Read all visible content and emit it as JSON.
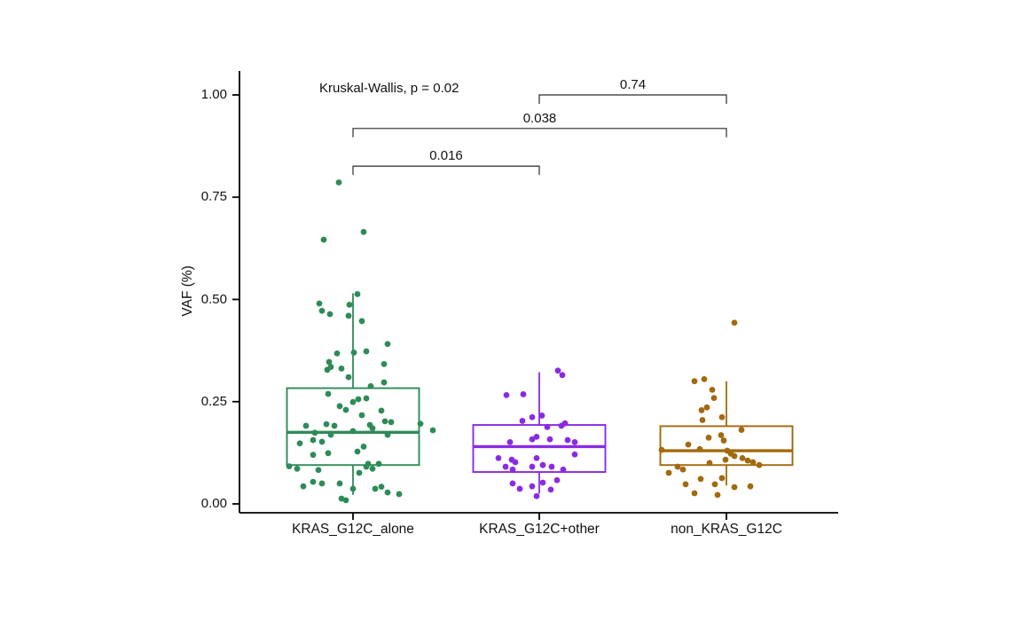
{
  "chart_data": {
    "type": "boxplot-jitter",
    "title": "",
    "xlabel": "",
    "ylabel": "VAF (%)",
    "ylim": [
      0,
      1.05
    ],
    "ytick_values": [
      0,
      0.25,
      0.5,
      0.75,
      1.0
    ],
    "ytick_labels": [
      "0.00",
      "0.25",
      "0.50",
      "0.75",
      "1.00"
    ],
    "grid": false,
    "legend": "none",
    "annotations": {
      "kruskal_label": "Kruskal-Wallis, p = 0.02",
      "comparisons": [
        {
          "from_index": 0,
          "to_index": 1,
          "p_label": "0.016",
          "y": 0.826
        },
        {
          "from_index": 0,
          "to_index": 2,
          "p_label": "0.038",
          "y": 0.918
        },
        {
          "from_index": 1,
          "to_index": 2,
          "p_label": "0.74",
          "y": 1.0
        }
      ]
    },
    "groups": [
      {
        "label": "KRAS_G12C_alone",
        "color": "#2E8B57",
        "box": {
          "q1": 0.095,
          "median": 0.175,
          "q3": 0.283,
          "whisker_low": 0.022,
          "whisker_high": 0.515
        },
        "points": [
          [
            -16,
            0.786
          ],
          [
            12,
            0.665
          ],
          [
            -33,
            0.646
          ],
          [
            5,
            0.513
          ],
          [
            -38,
            0.49
          ],
          [
            -4,
            0.487
          ],
          [
            -35,
            0.472
          ],
          [
            -26,
            0.464
          ],
          [
            -5,
            0.46
          ],
          [
            10,
            0.447
          ],
          [
            39,
            0.391
          ],
          [
            -18,
            0.368
          ],
          [
            1,
            0.37
          ],
          [
            15,
            0.373
          ],
          [
            -27,
            0.347
          ],
          [
            -25,
            0.335
          ],
          [
            -29,
            0.328
          ],
          [
            -13,
            0.331
          ],
          [
            35,
            0.342
          ],
          [
            -5,
            0.31
          ],
          [
            35,
            0.297
          ],
          [
            20,
            0.288
          ],
          [
            -28,
            0.269
          ],
          [
            6,
            0.256
          ],
          [
            15,
            0.258
          ],
          [
            0,
            0.249
          ],
          [
            -15,
            0.239
          ],
          [
            -8,
            0.23
          ],
          [
            32,
            0.228
          ],
          [
            10,
            0.217
          ],
          [
            36,
            0.202
          ],
          [
            43,
            0.2
          ],
          [
            -30,
            0.195
          ],
          [
            -21,
            0.191
          ],
          [
            19,
            0.193
          ],
          [
            22,
            0.185
          ],
          [
            90,
            0.18
          ],
          [
            76,
            0.196
          ],
          [
            0,
            0.178
          ],
          [
            39,
            0.169
          ],
          [
            -25,
            0.169
          ],
          [
            -43,
            0.174
          ],
          [
            -53,
            0.191
          ],
          [
            -45,
            0.156
          ],
          [
            -35,
            0.152
          ],
          [
            -60,
            0.148
          ],
          [
            12,
            0.14
          ],
          [
            5,
            0.128
          ],
          [
            -28,
            0.124
          ],
          [
            -45,
            0.12
          ],
          [
            17,
            0.098
          ],
          [
            29,
            0.098
          ],
          [
            -72,
            0.092
          ],
          [
            -63,
            0.086
          ],
          [
            -39,
            0.083
          ],
          [
            15,
            0.091
          ],
          [
            22,
            0.086
          ],
          [
            7,
            0.076
          ],
          [
            -45,
            0.054
          ],
          [
            -35,
            0.05
          ],
          [
            -56,
            0.043
          ],
          [
            -15,
            0.05
          ],
          [
            0,
            0.037
          ],
          [
            25,
            0.037
          ],
          [
            32,
            0.042
          ],
          [
            39,
            0.028
          ],
          [
            52,
            0.024
          ],
          [
            -13,
            0.013
          ],
          [
            -8,
            0.009
          ]
        ]
      },
      {
        "label": "KRAS_G12C+other",
        "color": "#8A2BE2",
        "box": {
          "q1": 0.078,
          "median": 0.14,
          "q3": 0.193,
          "whisker_low": 0.025,
          "whisker_high": 0.322
        },
        "points": [
          [
            21,
            0.326
          ],
          [
            26,
            0.315
          ],
          [
            -37,
            0.266
          ],
          [
            -18,
            0.268
          ],
          [
            3,
            0.216
          ],
          [
            -19,
            0.203
          ],
          [
            -8,
            0.212
          ],
          [
            9,
            0.188
          ],
          [
            29,
            0.197
          ],
          [
            25,
            0.191
          ],
          [
            -33,
            0.151
          ],
          [
            -8,
            0.158
          ],
          [
            -3,
            0.164
          ],
          [
            12,
            0.158
          ],
          [
            32,
            0.156
          ],
          [
            40,
            0.151
          ],
          [
            -46,
            0.112
          ],
          [
            -31,
            0.108
          ],
          [
            -27,
            0.102
          ],
          [
            -3,
            0.112
          ],
          [
            40,
            0.121
          ],
          [
            -8,
            0.091
          ],
          [
            4,
            0.095
          ],
          [
            14,
            0.091
          ],
          [
            27,
            0.084
          ],
          [
            -38,
            0.091
          ],
          [
            -30,
            0.084
          ],
          [
            -30,
            0.05
          ],
          [
            -22,
            0.037
          ],
          [
            -8,
            0.043
          ],
          [
            4,
            0.052
          ],
          [
            13,
            0.035
          ],
          [
            20,
            0.058
          ],
          [
            -3,
            0.019
          ]
        ]
      },
      {
        "label": "non_KRAS_G12C",
        "color": "#A2690D",
        "box": {
          "q1": 0.095,
          "median": 0.13,
          "q3": 0.19,
          "whisker_low": 0.045,
          "whisker_high": 0.3
        },
        "points": [
          [
            9,
            0.443
          ],
          [
            -36,
            0.3
          ],
          [
            -25,
            0.305
          ],
          [
            -16,
            0.279
          ],
          [
            -14,
            0.259
          ],
          [
            -28,
            0.229
          ],
          [
            -22,
            0.236
          ],
          [
            -27,
            0.205
          ],
          [
            -5,
            0.212
          ],
          [
            17,
            0.181
          ],
          [
            -20,
            0.162
          ],
          [
            -6,
            0.168
          ],
          [
            -3,
            0.155
          ],
          [
            -43,
            0.145
          ],
          [
            -30,
            0.134
          ],
          [
            -73,
            0.132
          ],
          [
            1,
            0.13
          ],
          [
            5,
            0.123
          ],
          [
            9,
            0.117
          ],
          [
            18,
            0.112
          ],
          [
            24,
            0.106
          ],
          [
            30,
            0.102
          ],
          [
            37,
            0.095
          ],
          [
            -19,
            0.1
          ],
          [
            -1,
            0.108
          ],
          [
            -55,
            0.091
          ],
          [
            -49,
            0.084
          ],
          [
            -65,
            0.076
          ],
          [
            -29,
            0.061
          ],
          [
            -5,
            0.063
          ],
          [
            -46,
            0.048
          ],
          [
            -13,
            0.048
          ],
          [
            9,
            0.041
          ],
          [
            27,
            0.043
          ],
          [
            -36,
            0.026
          ],
          [
            -10,
            0.022
          ]
        ]
      }
    ]
  }
}
